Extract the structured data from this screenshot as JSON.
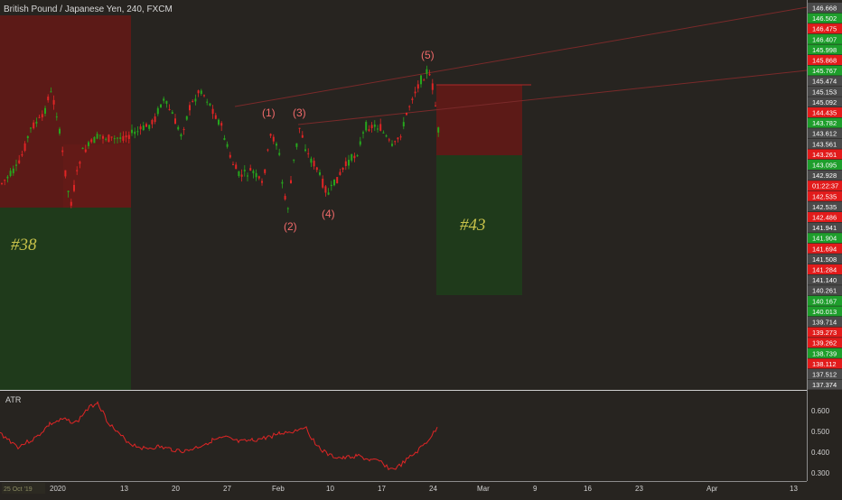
{
  "symbol_title": "British Pound / Japanese Yen, 240, FXCM",
  "indicator_label": "ATR",
  "countdown": "01:22:37",
  "trade_labels": [
    "#38",
    "#43"
  ],
  "wave_labels": [
    "(1)",
    "(2)",
    "(3)",
    "(4)",
    "(5)"
  ],
  "price_scale": [
    {
      "value": "146.668",
      "color": "#4a4a4a"
    },
    {
      "value": "146.502",
      "color": "#1e9e2c"
    },
    {
      "value": "146.475",
      "color": "#e21b1b"
    },
    {
      "value": "146.407",
      "color": "#1e9e2c"
    },
    {
      "value": "145.998",
      "color": "#1e9e2c"
    },
    {
      "value": "145.868",
      "color": "#e21b1b"
    },
    {
      "value": "145.767",
      "color": "#1e9e2c"
    },
    {
      "value": "145.474",
      "color": "#4a4a4a"
    },
    {
      "value": "145.153",
      "color": "#4a4a4a"
    },
    {
      "value": "145.092",
      "color": "#4a4a4a"
    },
    {
      "value": "144.435",
      "color": "#e21b1b"
    },
    {
      "value": "143.782",
      "color": "#1e9e2c"
    },
    {
      "value": "143.612",
      "color": "#4a4a4a"
    },
    {
      "value": "143.561",
      "color": "#4a4a4a"
    },
    {
      "value": "143.261",
      "color": "#e21b1b"
    },
    {
      "value": "143.095",
      "color": "#1e9e2c"
    },
    {
      "value": "142.928",
      "color": "#4a4a4a"
    },
    {
      "value": "01:22:37",
      "color": "#e21b1b"
    },
    {
      "value": "142.535",
      "color": "#e21b1b"
    },
    {
      "value": "142.535",
      "color": "#4a4a4a"
    },
    {
      "value": "142.486",
      "color": "#e21b1b"
    },
    {
      "value": "141.941",
      "color": "#4a4a4a"
    },
    {
      "value": "141.904",
      "color": "#1e9e2c"
    },
    {
      "value": "141.694",
      "color": "#e21b1b"
    },
    {
      "value": "141.508",
      "color": "#4a4a4a"
    },
    {
      "value": "141.284",
      "color": "#e21b1b"
    },
    {
      "value": "141.140",
      "color": "#4a4a4a"
    },
    {
      "value": "140.261",
      "color": "#4a4a4a"
    },
    {
      "value": "140.167",
      "color": "#1e9e2c"
    },
    {
      "value": "140.013",
      "color": "#1e9e2c"
    },
    {
      "value": "139.714",
      "color": "#4a4a4a"
    },
    {
      "value": "139.273",
      "color": "#e21b1b"
    },
    {
      "value": "139.262",
      "color": "#e21b1b"
    },
    {
      "value": "138.739",
      "color": "#1e9e2c"
    },
    {
      "value": "138.112",
      "color": "#e21b1b"
    },
    {
      "value": "137.512",
      "color": "#4a4a4a"
    },
    {
      "value": "137.374",
      "color": "#4a4a4a"
    }
  ],
  "atr_scale": [
    "0.600",
    "0.500",
    "0.400",
    "0.300"
  ],
  "time_axis": [
    "2020",
    "13",
    "20",
    "27",
    "Feb",
    "10",
    "17",
    "24",
    "Mar",
    "9",
    "16",
    "23",
    "Apr",
    "13"
  ],
  "time_axis_hint": "25 Oct '19",
  "colors": {
    "background": "#272420",
    "up": "#26a61d",
    "down": "#e02525",
    "profit_zone": "#1f3a1b",
    "loss_zone": "#5c1a17",
    "label_yellow": "#c8c24a",
    "wave_label": "#f06a6a"
  }
}
